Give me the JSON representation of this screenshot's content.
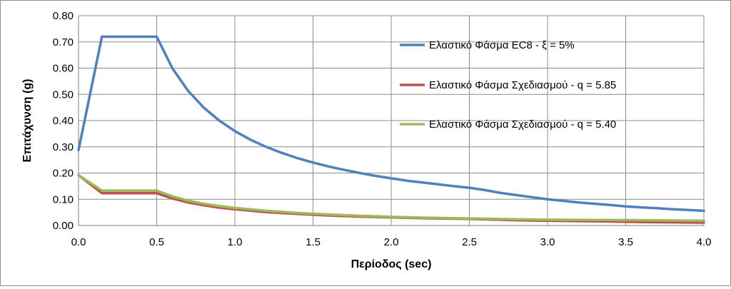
{
  "chart_data": {
    "type": "line",
    "title": "",
    "xlabel": "Περίοδος (sec)",
    "ylabel": "Επιτάχυνση (g)",
    "xlim": [
      0,
      4
    ],
    "ylim": [
      0,
      0.8
    ],
    "x_ticks": [
      "0.0",
      "0.5",
      "1.0",
      "1.5",
      "2.0",
      "2.5",
      "3.0",
      "3.5",
      "4.0"
    ],
    "y_ticks": [
      "0.00",
      "0.10",
      "0.20",
      "0.30",
      "0.40",
      "0.50",
      "0.60",
      "0.70",
      "0.80"
    ],
    "grid": true,
    "legend_position": "right",
    "series": [
      {
        "name": "Ελαστικό Φάσμα EC8 - ξ = 5%",
        "color": "#4f81bd",
        "x": [
          0,
          0.15,
          0.5,
          0.6,
          0.7,
          0.8,
          0.9,
          1.0,
          1.1,
          1.2,
          1.3,
          1.4,
          1.5,
          1.6,
          1.7,
          1.8,
          1.9,
          2.0,
          2.1,
          2.2,
          2.3,
          2.4,
          2.5,
          2.6,
          2.7,
          2.8,
          2.9,
          3.0,
          3.1,
          3.2,
          3.3,
          3.4,
          3.5,
          3.6,
          3.7,
          3.8,
          3.9,
          4.0
        ],
        "y": [
          0.288,
          0.72,
          0.72,
          0.6,
          0.514,
          0.45,
          0.4,
          0.36,
          0.327,
          0.3,
          0.277,
          0.257,
          0.24,
          0.225,
          0.212,
          0.2,
          0.189,
          0.18,
          0.171,
          0.164,
          0.157,
          0.15,
          0.144,
          0.135,
          0.124,
          0.116,
          0.108,
          0.1,
          0.094,
          0.088,
          0.083,
          0.078,
          0.073,
          0.069,
          0.066,
          0.062,
          0.059,
          0.056
        ]
      },
      {
        "name": "Ελαστικό Φάσμα Σχεδιασμού - q = 5.85",
        "color": "#c0504d",
        "x": [
          0,
          0.15,
          0.5,
          0.6,
          0.7,
          0.8,
          0.9,
          1.0,
          1.2,
          1.4,
          1.6,
          1.8,
          2.0,
          2.2,
          2.5,
          2.8,
          3.0,
          3.3,
          3.6,
          4.0
        ],
        "y": [
          0.192,
          0.123,
          0.123,
          0.103,
          0.088,
          0.077,
          0.068,
          0.062,
          0.051,
          0.044,
          0.038,
          0.034,
          0.031,
          0.028,
          0.025,
          0.02,
          0.018,
          0.016,
          0.013,
          0.011
        ]
      },
      {
        "name": "Ελαστικό Φάσμα Σχεδιασμού - q = 5.40",
        "color": "#9bbb59",
        "x": [
          0,
          0.15,
          0.5,
          0.6,
          0.7,
          0.8,
          0.9,
          1.0,
          1.2,
          1.4,
          1.6,
          1.8,
          2.0,
          2.2,
          2.5,
          2.8,
          3.0,
          3.3,
          3.6,
          4.0
        ],
        "y": [
          0.192,
          0.133,
          0.133,
          0.111,
          0.095,
          0.083,
          0.074,
          0.067,
          0.056,
          0.048,
          0.042,
          0.037,
          0.033,
          0.03,
          0.027,
          0.024,
          0.022,
          0.021,
          0.02,
          0.018
        ]
      }
    ]
  }
}
